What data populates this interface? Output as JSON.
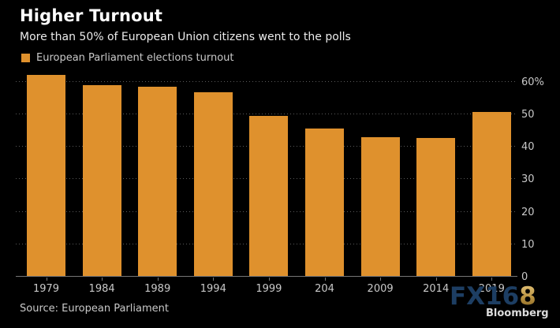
{
  "header": {
    "title": "Higher Turnout",
    "subtitle": "More than 50% of European Union citizens went to the polls"
  },
  "legend": {
    "label": "European Parliament elections turnout",
    "swatch_color": "#DF912D"
  },
  "chart_data": {
    "type": "bar",
    "title": "Higher Turnout",
    "subtitle": "More than 50% of European Union citizens went to the polls",
    "series_name": "European Parliament elections turnout",
    "categories": [
      "1979",
      "1984",
      "1989",
      "1994",
      "1999",
      "204",
      "2009",
      "2014",
      "2019"
    ],
    "values": [
      62,
      59,
      58.4,
      56.7,
      49.5,
      45.5,
      43,
      42.6,
      50.7
    ],
    "xlabel": "",
    "ylabel": "",
    "ylim": [
      0,
      63.8
    ],
    "yticks": [
      0,
      10,
      20,
      30,
      40,
      50,
      60
    ],
    "ytick_labels": [
      "0",
      "10",
      "20",
      "30",
      "40",
      "50",
      "60%"
    ],
    "grid": "dotted horizontal",
    "axis_side": "right",
    "legend_position": "top-left",
    "bar_color": "#DF912D",
    "background_color": "#000000"
  },
  "source": {
    "text": "Source: European Parliament"
  },
  "watermark": {
    "fx_blue": "FX16",
    "fx_gold": "8",
    "brand": "Bloomberg"
  }
}
